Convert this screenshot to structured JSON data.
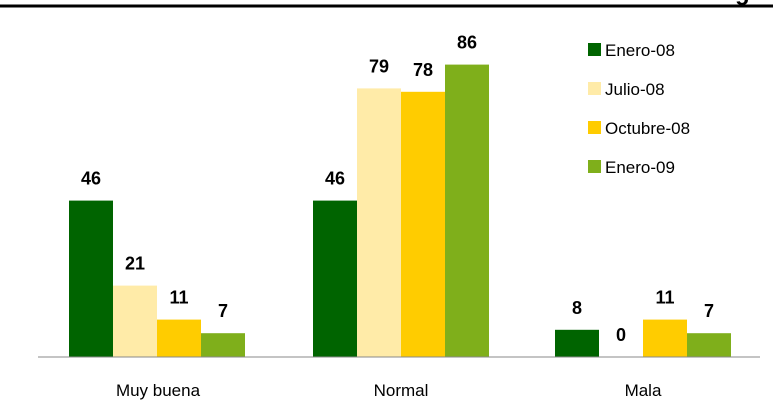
{
  "chart_data": {
    "type": "bar",
    "title_fragment": "g",
    "categories": [
      "Muy buena",
      "Normal",
      "Mala"
    ],
    "series": [
      {
        "name": "Enero-08",
        "color": "#006400",
        "values": [
          46,
          46,
          8
        ]
      },
      {
        "name": "Julio-08",
        "color": "#FFEBA8",
        "values": [
          21,
          79,
          0
        ]
      },
      {
        "name": "Octubre-08",
        "color": "#FFCC00",
        "values": [
          11,
          78,
          11
        ]
      },
      {
        "name": "Enero-09",
        "color": "#7FAF1B",
        "values": [
          7,
          86,
          7
        ]
      }
    ],
    "ylim": [
      0,
      100
    ],
    "grid": false,
    "legend_position": "top-right",
    "data_labels": true
  }
}
